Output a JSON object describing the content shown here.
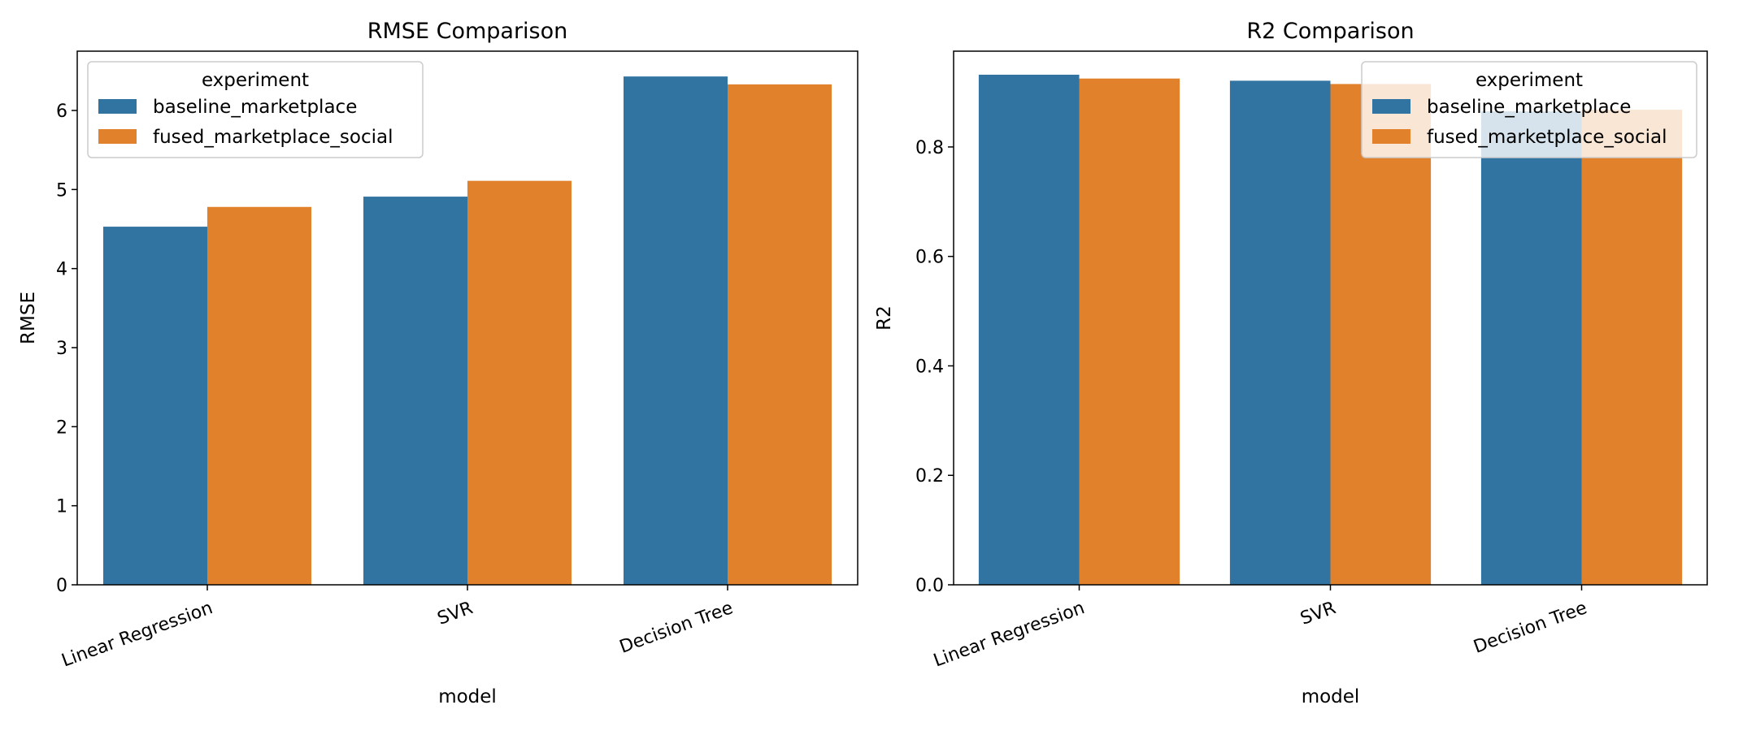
{
  "colors": {
    "baseline_marketplace": "#3274a1",
    "fused_marketplace_social": "#e1812c"
  },
  "chart_data": [
    {
      "type": "bar",
      "title": "RMSE Comparison",
      "xlabel": "model",
      "ylabel": "RMSE",
      "categories": [
        "Linear Regression",
        "SVR",
        "Decision Tree"
      ],
      "series": [
        {
          "name": "baseline_marketplace",
          "values": [
            4.53,
            4.91,
            6.43
          ]
        },
        {
          "name": "fused_marketplace_social",
          "values": [
            4.78,
            5.11,
            6.33
          ]
        }
      ],
      "ylim": [
        0,
        6.75
      ],
      "yticks": [
        0,
        1,
        2,
        3,
        4,
        5,
        6
      ],
      "ytick_labels": [
        "0",
        "1",
        "2",
        "3",
        "4",
        "5",
        "6"
      ],
      "legend": {
        "title": "experiment",
        "position": "upper-left"
      },
      "grid": false
    },
    {
      "type": "bar",
      "title": "R2 Comparison",
      "xlabel": "model",
      "ylabel": "R2",
      "categories": [
        "Linear Regression",
        "SVR",
        "Decision Tree"
      ],
      "series": [
        {
          "name": "baseline_marketplace",
          "values": [
            0.932,
            0.921,
            0.865
          ]
        },
        {
          "name": "fused_marketplace_social",
          "values": [
            0.925,
            0.915,
            0.868
          ]
        }
      ],
      "ylim": [
        0,
        0.975
      ],
      "yticks": [
        0,
        0.2,
        0.4,
        0.6,
        0.8
      ],
      "ytick_labels": [
        "0.0",
        "0.2",
        "0.4",
        "0.6",
        "0.8"
      ],
      "legend": {
        "title": "experiment",
        "position": "upper-right"
      },
      "grid": false
    }
  ]
}
